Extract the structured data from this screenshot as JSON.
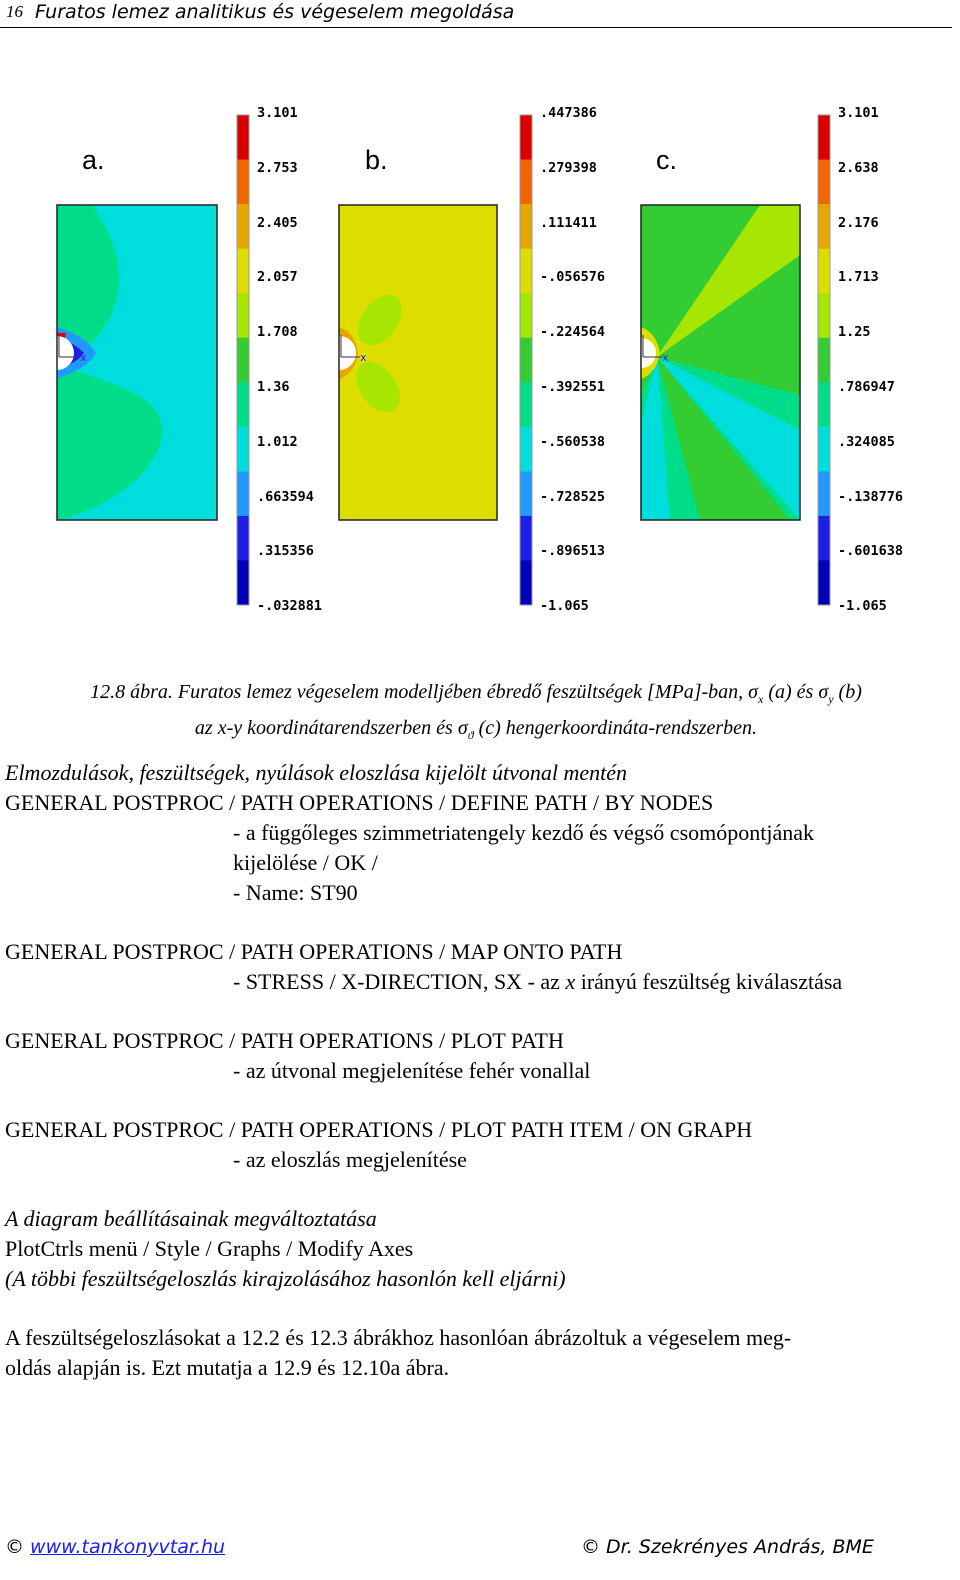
{
  "header": {
    "page_number": "16",
    "title": "Furatos lemez analitikus és végeselem megoldása"
  },
  "figure": {
    "panels": [
      {
        "letter": "a.",
        "ticks": [
          "3.101",
          "2.753",
          "2.405",
          "2.057",
          "1.708",
          "1.36",
          "1.012",
          ".663594",
          ".315356",
          "-.032881"
        ]
      },
      {
        "letter": "b.",
        "ticks": [
          ".447386",
          ".279398",
          ".111411",
          "-.056576",
          "-.224564",
          "-.392551",
          "-.560538",
          "-.728525",
          "-.896513",
          "-1.065"
        ]
      },
      {
        "letter": "c.",
        "ticks": [
          "3.101",
          "2.638",
          "2.176",
          "1.713",
          "1.25",
          ".786947",
          ".324085",
          "-.138776",
          "-.601638",
          "-1.065"
        ]
      }
    ],
    "axis_mark": "x",
    "colors": [
      "#d90000",
      "#f26600",
      "#e6a800",
      "#dddd00",
      "#a6e600",
      "#33cc33",
      "#00dd88",
      "#00dddd",
      "#2299ff",
      "#1e1ee6",
      "#0000bb"
    ]
  },
  "caption": {
    "line1_a": "12.8 ábra. Furatos lemez végeselem modelljében ébredő feszültségek [MPa]-ban, ",
    "sigma": "σ",
    "sub_x": "x",
    "and_a": " (a) és ",
    "sub_y": "y",
    "b_end": " (b)",
    "line2_a": "az x-y koordinátarendszerben és ",
    "sub_theta": "ϑ",
    "line2_b": " (c) hengerkoordináta-rendszerben."
  },
  "section": {
    "heading": "Elmozdulások, feszültségek, nyúlások eloszlása kijelölt útvonal mentén",
    "l1": "GENERAL POSTPROC / PATH OPERATIONS / DEFINE PATH / BY NODES",
    "l2": "- a függőleges szimmetriatengely kezdő és végső csomópontjának",
    "l3": "kijelölése / OK /",
    "l4": "- Name: ST90",
    "l5": "GENERAL POSTPROC / PATH OPERATIONS / MAP ONTO PATH",
    "l6a": "- STRESS / X-DIRECTION, SX - az ",
    "l6x": "x",
    "l6b": " irányú feszültség kiválasztása",
    "l7": "GENERAL POSTPROC / PATH OPERATIONS / PLOT PATH",
    "l8": "- az útvonal megjelenítése fehér vonallal",
    "l9": "GENERAL POSTPROC / PATH OPERATIONS / PLOT PATH ITEM / ON GRAPH",
    "l10": "- az eloszlás megjelenítése",
    "l11": "A diagram beállításainak megváltoztatása",
    "l12": "PlotCtrls menü / Style / Graphs / Modify Axes",
    "l13": "(A többi feszültségeloszlás kirajzolásához hasonlón kell eljárni)",
    "p1": "A feszültségeloszlásokat a 12.2 és 12.3 ábrákhoz hasonlóan ábrázoltuk a végeselem meg-",
    "p2": "oldás alapján is. Ezt mutatja a 12.9 és 12.10a ábra."
  },
  "footer": {
    "copy": "©",
    "left_link": "www.tankonyvtar.hu",
    "right": "Dr. Szekrényes András, BME"
  }
}
